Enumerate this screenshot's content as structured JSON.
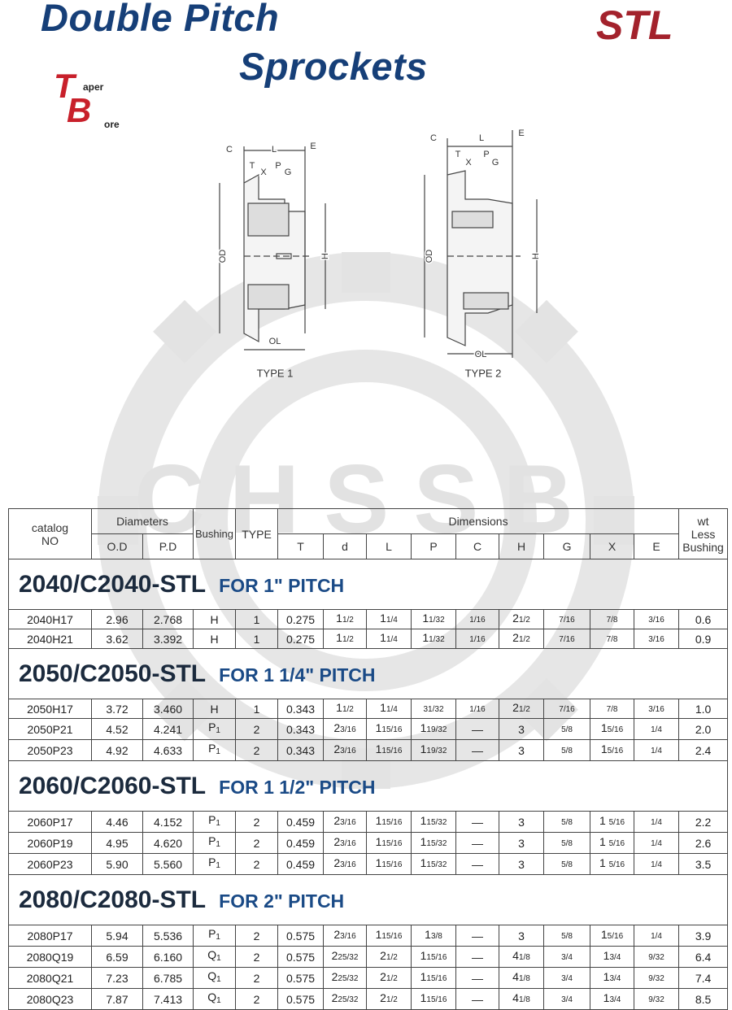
{
  "header": {
    "title_line1": "Double Pitch",
    "title_line2": "Sprockets",
    "brand": "STL",
    "logo": {
      "letter1": "T",
      "text1": "aper",
      "letter2": "B",
      "text2": "ore"
    }
  },
  "watermark": "CHSSB",
  "diagrams": [
    {
      "caption": "TYPE 1",
      "labels": [
        "C",
        "L",
        "E",
        "T",
        "X",
        "P",
        "G",
        "OD",
        "H",
        "OL"
      ]
    },
    {
      "caption": "TYPE 2",
      "labels": [
        "C",
        "L",
        "E",
        "T",
        "X",
        "P",
        "G",
        "OD",
        "H",
        "OL"
      ]
    }
  ],
  "table": {
    "header": {
      "catalog": [
        "catalog",
        "NO"
      ],
      "diameters": "Diameters",
      "od": "O.D",
      "pd": "P.D",
      "bushing": "Bushing",
      "type": "TYPE",
      "dimensions": "Dimensions",
      "dims": [
        "T",
        "d",
        "L",
        "P",
        "C",
        "H",
        "G",
        "X",
        "E"
      ],
      "wt": [
        "wt",
        "Less",
        "Bushing"
      ]
    },
    "sections": [
      {
        "title": "2040/C2040-STL",
        "subtitle": "FOR 1\" PITCH",
        "rows": [
          [
            "2040H17",
            "2.96",
            "2.768",
            "H",
            "1",
            "0.275",
            [
              "1",
              "1/2"
            ],
            [
              "1",
              "1/4"
            ],
            [
              "1",
              "1/32"
            ],
            "1/16",
            [
              "2",
              "1/2"
            ],
            "7/16",
            "7/8",
            "3/16",
            "0.6"
          ],
          [
            "2040H21",
            "3.62",
            "3.392",
            "H",
            "1",
            "0.275",
            [
              "1",
              "1/2"
            ],
            [
              "1",
              "1/4"
            ],
            [
              "1",
              "1/32"
            ],
            "1/16",
            [
              "2",
              "1/2"
            ],
            "7/16",
            "7/8",
            "3/16",
            "0.9"
          ]
        ]
      },
      {
        "title": "2050/C2050-STL",
        "subtitle": "FOR 1 1/4\" PITCH",
        "rows": [
          [
            "2050H17",
            "3.72",
            "3.460",
            "H",
            "1",
            "0.343",
            [
              "1",
              "1/2"
            ],
            [
              "1",
              "1/4"
            ],
            "31/32",
            "1/16",
            [
              "2",
              "1/2"
            ],
            "7/16",
            "7/8",
            "3/16",
            "1.0"
          ],
          [
            "2050P21",
            "4.52",
            "4.241",
            [
              "P",
              "1"
            ],
            "2",
            "0.343",
            [
              "2",
              "3/16"
            ],
            [
              "1",
              "15/16"
            ],
            [
              "1",
              "19/32"
            ],
            "—",
            "3",
            "5/8",
            [
              "1",
              "5/16"
            ],
            "1/4",
            "2.0"
          ],
          [
            "2050P23",
            "4.92",
            "4.633",
            [
              "P",
              "1"
            ],
            "2",
            "0.343",
            [
              "2",
              "3/16"
            ],
            [
              "1",
              "15/16"
            ],
            [
              "1",
              "19/32"
            ],
            "—",
            "3",
            "5/8",
            [
              "1",
              "5/16"
            ],
            "1/4",
            "2.4"
          ]
        ]
      },
      {
        "title": "2060/C2060-STL",
        "subtitle": "FOR 1 1/2\" PITCH",
        "rows": [
          [
            "2060P17",
            "4.46",
            "4.152",
            [
              "P",
              "1"
            ],
            "2",
            "0.459",
            [
              "2",
              "3/16"
            ],
            [
              "1",
              "15/16"
            ],
            [
              "1",
              "15/32"
            ],
            "—",
            "3",
            "5/8",
            [
              "1 ",
              "5/16"
            ],
            "1/4",
            "2.2"
          ],
          [
            "2060P19",
            "4.95",
            "4.620",
            [
              "P",
              "1"
            ],
            "2",
            "0.459",
            [
              "2",
              "3/16"
            ],
            [
              "1",
              "15/16"
            ],
            [
              "1",
              "15/32"
            ],
            "—",
            "3",
            "5/8",
            [
              "1 ",
              "5/16"
            ],
            "1/4",
            "2.6"
          ],
          [
            "2060P23",
            "5.90",
            "5.560",
            [
              "P",
              "1"
            ],
            "2",
            "0.459",
            [
              "2",
              "3/16"
            ],
            [
              "1",
              "15/16"
            ],
            [
              "1",
              "15/32"
            ],
            "—",
            "3",
            "5/8",
            [
              "1 ",
              "5/16"
            ],
            "1/4",
            "3.5"
          ]
        ]
      },
      {
        "title": "2080/C2080-STL",
        "subtitle": "FOR 2\" PITCH",
        "rows": [
          [
            "2080P17",
            "5.94",
            "5.536",
            [
              "P",
              "1"
            ],
            "2",
            "0.575",
            [
              "2",
              "3/16"
            ],
            [
              "1",
              "15/16"
            ],
            [
              "1",
              "3/8"
            ],
            "—",
            "3",
            "5/8",
            [
              "1",
              "5/16"
            ],
            "1/4",
            "3.9"
          ],
          [
            "2080Q19",
            "6.59",
            "6.160",
            [
              "Q",
              "1"
            ],
            "2",
            "0.575",
            [
              "2",
              "25/32"
            ],
            [
              "2",
              "1/2"
            ],
            [
              "1",
              "15/16"
            ],
            "—",
            [
              "4",
              "1/8"
            ],
            "3/4",
            [
              "1",
              "3/4"
            ],
            "9/32",
            "6.4"
          ],
          [
            "2080Q21",
            "7.23",
            "6.785",
            [
              "Q",
              "1"
            ],
            "2",
            "0.575",
            [
              "2",
              "25/32"
            ],
            [
              "2",
              "1/2"
            ],
            [
              "1",
              "15/16"
            ],
            "—",
            [
              "4",
              "1/8"
            ],
            "3/4",
            [
              "1",
              "3/4"
            ],
            "9/32",
            "7.4"
          ],
          [
            "2080Q23",
            "7.87",
            "7.413",
            [
              "Q",
              "1"
            ],
            "2",
            "0.575",
            [
              "2",
              "25/32"
            ],
            [
              "2",
              "1/2"
            ],
            [
              "1",
              "15/16"
            ],
            "—",
            [
              "4",
              "1/8"
            ],
            "3/4",
            [
              "1",
              "3/4"
            ],
            "9/32",
            "8.5"
          ]
        ]
      }
    ]
  }
}
